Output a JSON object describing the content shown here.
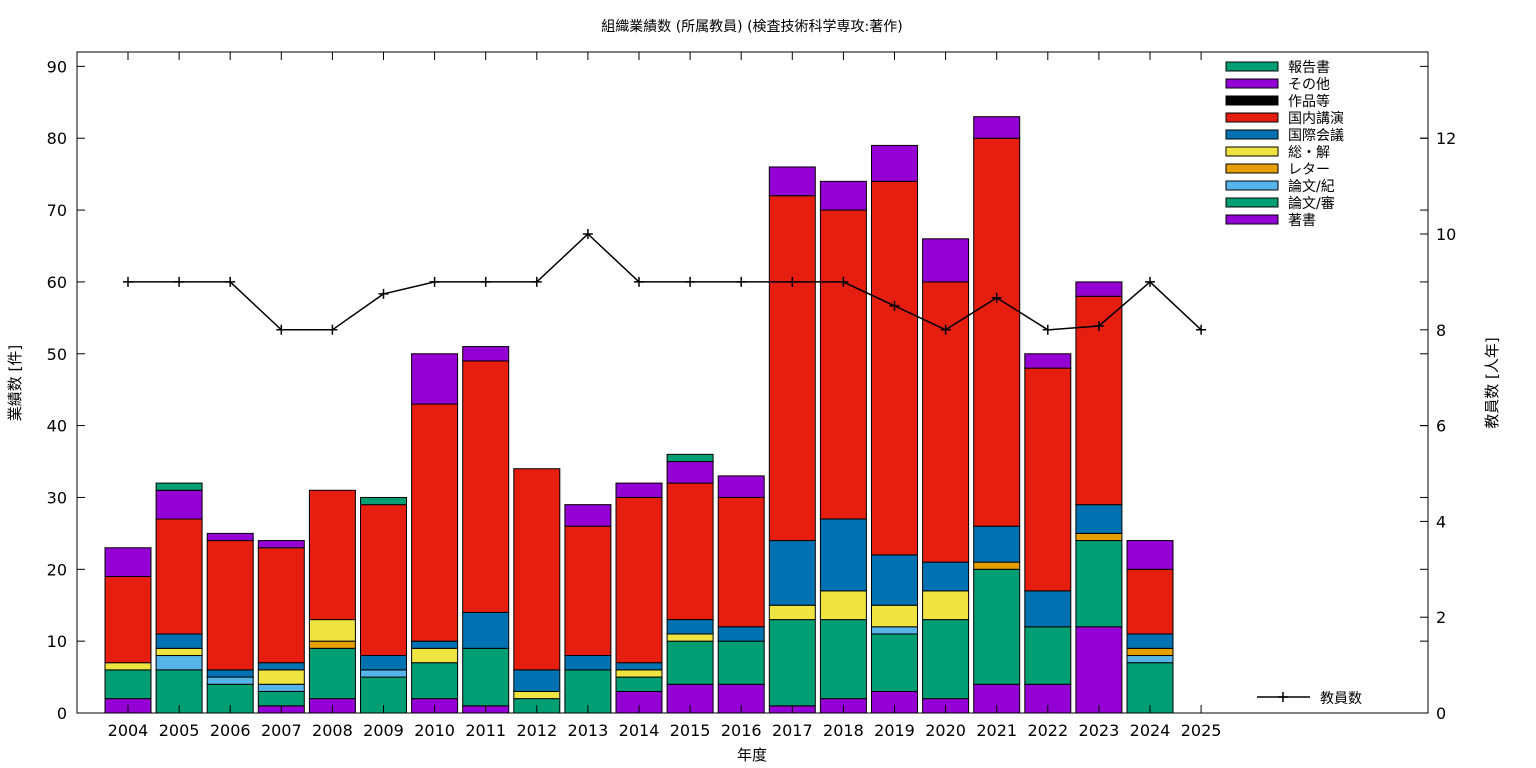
{
  "chart_data": {
    "type": "bar",
    "title": "組織業績数 (所属教員) (検査技術科学専攻:著作)",
    "xlabel": "年度",
    "ylabel": "業績数 [件]",
    "y2label": "教員数 [人年]",
    "ylim": [
      0,
      92
    ],
    "y2lim": [
      0,
      13.8
    ],
    "yticks": [
      0,
      10,
      20,
      30,
      40,
      50,
      60,
      70,
      80,
      90
    ],
    "y2ticks": [
      0,
      2,
      4,
      6,
      8,
      10,
      12
    ],
    "grid": false,
    "legend": "top-right",
    "categories": [
      "2004",
      "2005",
      "2006",
      "2007",
      "2008",
      "2009",
      "2010",
      "2011",
      "2012",
      "2013",
      "2014",
      "2015",
      "2016",
      "2017",
      "2018",
      "2019",
      "2020",
      "2021",
      "2022",
      "2023",
      "2024",
      "2025"
    ],
    "series": [
      {
        "name": "著書",
        "color": "#9400d3",
        "values": [
          2,
          0,
          0,
          1,
          2,
          0,
          2,
          1,
          0,
          0,
          3,
          4,
          4,
          1,
          2,
          3,
          2,
          4,
          4,
          12,
          0,
          0
        ]
      },
      {
        "name": "論文/審",
        "color": "#009e73",
        "values": [
          4,
          6,
          4,
          2,
          7,
          5,
          5,
          8,
          2,
          6,
          2,
          6,
          6,
          12,
          11,
          8,
          11,
          16,
          8,
          12,
          7,
          0
        ]
      },
      {
        "name": "論文/紀",
        "color": "#56b4e9",
        "values": [
          0,
          2,
          1,
          1,
          0,
          1,
          0,
          0,
          0,
          0,
          0,
          0,
          0,
          0,
          0,
          1,
          0,
          0,
          0,
          0,
          1,
          0
        ]
      },
      {
        "name": "レター",
        "color": "#e69f00",
        "values": [
          0,
          0,
          0,
          0,
          1,
          0,
          0,
          0,
          0,
          0,
          0,
          0,
          0,
          0,
          0,
          0,
          0,
          1,
          0,
          1,
          1,
          0
        ]
      },
      {
        "name": "総・解",
        "color": "#f0e442",
        "values": [
          1,
          1,
          0,
          2,
          3,
          0,
          2,
          0,
          1,
          0,
          1,
          1,
          0,
          2,
          4,
          3,
          4,
          0,
          0,
          0,
          0,
          0
        ]
      },
      {
        "name": "国際会議",
        "color": "#0072b2",
        "values": [
          0,
          2,
          1,
          1,
          0,
          2,
          1,
          5,
          3,
          2,
          1,
          2,
          2,
          9,
          10,
          7,
          4,
          5,
          5,
          4,
          2,
          0
        ]
      },
      {
        "name": "国内講演",
        "color": "#e51e10",
        "values": [
          12,
          16,
          18,
          16,
          18,
          21,
          33,
          35,
          28,
          18,
          23,
          19,
          18,
          48,
          43,
          52,
          39,
          54,
          31,
          29,
          9,
          0
        ]
      },
      {
        "name": "作品等",
        "color": "#000000",
        "values": [
          0,
          0,
          0,
          0,
          0,
          0,
          0,
          0,
          0,
          0,
          0,
          0,
          0,
          0,
          0,
          0,
          0,
          0,
          0,
          0,
          0,
          0
        ]
      },
      {
        "name": "その他",
        "color": "#9400d3",
        "values": [
          4,
          4,
          1,
          1,
          0,
          0,
          7,
          2,
          0,
          3,
          2,
          3,
          3,
          4,
          4,
          5,
          6,
          3,
          2,
          2,
          4,
          0
        ]
      },
      {
        "name": "報告書",
        "color": "#009e73",
        "values": [
          0,
          1,
          0,
          0,
          0,
          1,
          0,
          0,
          0,
          0,
          0,
          1,
          0,
          0,
          0,
          0,
          0,
          0,
          0,
          0,
          0,
          0
        ]
      }
    ],
    "legend_order": [
      "報告書",
      "その他",
      "作品等",
      "国内講演",
      "国際会議",
      "総・解",
      "レター",
      "論文/紀",
      "論文/審",
      "著書"
    ],
    "line": {
      "name": "教員数",
      "axis": "y2",
      "values": [
        9,
        9,
        9,
        8,
        8,
        8.75,
        9,
        9,
        9,
        10,
        9,
        9,
        9,
        9,
        9,
        8.5,
        8,
        8.67,
        8,
        8.08,
        9,
        8
      ]
    }
  }
}
